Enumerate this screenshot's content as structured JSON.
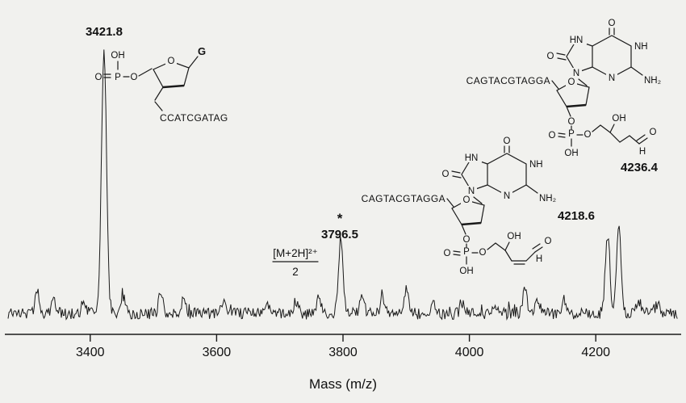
{
  "figure": {
    "xlabel": "Mass (m/z)"
  },
  "peak_labels": {
    "p3421": "3421.8",
    "p3796": "3796.5",
    "star": "*",
    "p4218": "4218.6",
    "p4236": "4236.4"
  },
  "fraction": {
    "numerator": "[M+2H]²⁺",
    "denominator": "2"
  },
  "sequences": {
    "left": "CCATCGATAG",
    "middle": "CAGTACGTAGGA",
    "right": "CAGTACGTAGGA"
  },
  "atoms": {
    "O": "O",
    "OH": "OH",
    "P": "P",
    "G": "G",
    "N": "N",
    "HN": "HN",
    "NH": "NH",
    "NH2": "NH₂",
    "H": "H"
  },
  "chart_data": {
    "type": "line",
    "title": "",
    "xlabel": "Mass (m/z)",
    "ylabel": "",
    "xlim": [
      3270,
      4330
    ],
    "x_ticks": [
      3400,
      3600,
      3800,
      4000,
      4200
    ],
    "baseline_intensity": 3,
    "noise_amplitude": 2.2,
    "peaks": [
      {
        "mz": 3316,
        "intensity": 8
      },
      {
        "mz": 3342,
        "intensity": 6
      },
      {
        "mz": 3390,
        "intensity": 5
      },
      {
        "mz": 3421.8,
        "intensity": 100,
        "width": 4,
        "label": "3421.8"
      },
      {
        "mz": 3452,
        "intensity": 6
      },
      {
        "mz": 3512,
        "intensity": 8
      },
      {
        "mz": 3548,
        "intensity": 5
      },
      {
        "mz": 3610,
        "intensity": 4
      },
      {
        "mz": 3680,
        "intensity": 4
      },
      {
        "mz": 3725,
        "intensity": 5
      },
      {
        "mz": 3762,
        "intensity": 6
      },
      {
        "mz": 3796.5,
        "intensity": 27,
        "label": "3796.5",
        "annotation": "* , [M+2H]²⁺/2"
      },
      {
        "mz": 3830,
        "intensity": 6
      },
      {
        "mz": 3862,
        "intensity": 5
      },
      {
        "mz": 3900,
        "intensity": 8
      },
      {
        "mz": 3942,
        "intensity": 4
      },
      {
        "mz": 3990,
        "intensity": 4
      },
      {
        "mz": 4040,
        "intensity": 4
      },
      {
        "mz": 4088,
        "intensity": 9
      },
      {
        "mz": 4108,
        "intensity": 6
      },
      {
        "mz": 4150,
        "intensity": 5
      },
      {
        "mz": 4218.6,
        "intensity": 30,
        "label": "4218.6"
      },
      {
        "mz": 4236.4,
        "intensity": 34,
        "label": "4236.4"
      },
      {
        "mz": 4268,
        "intensity": 5
      },
      {
        "mz": 4298,
        "intensity": 4
      }
    ],
    "legend": false,
    "grid": false
  }
}
